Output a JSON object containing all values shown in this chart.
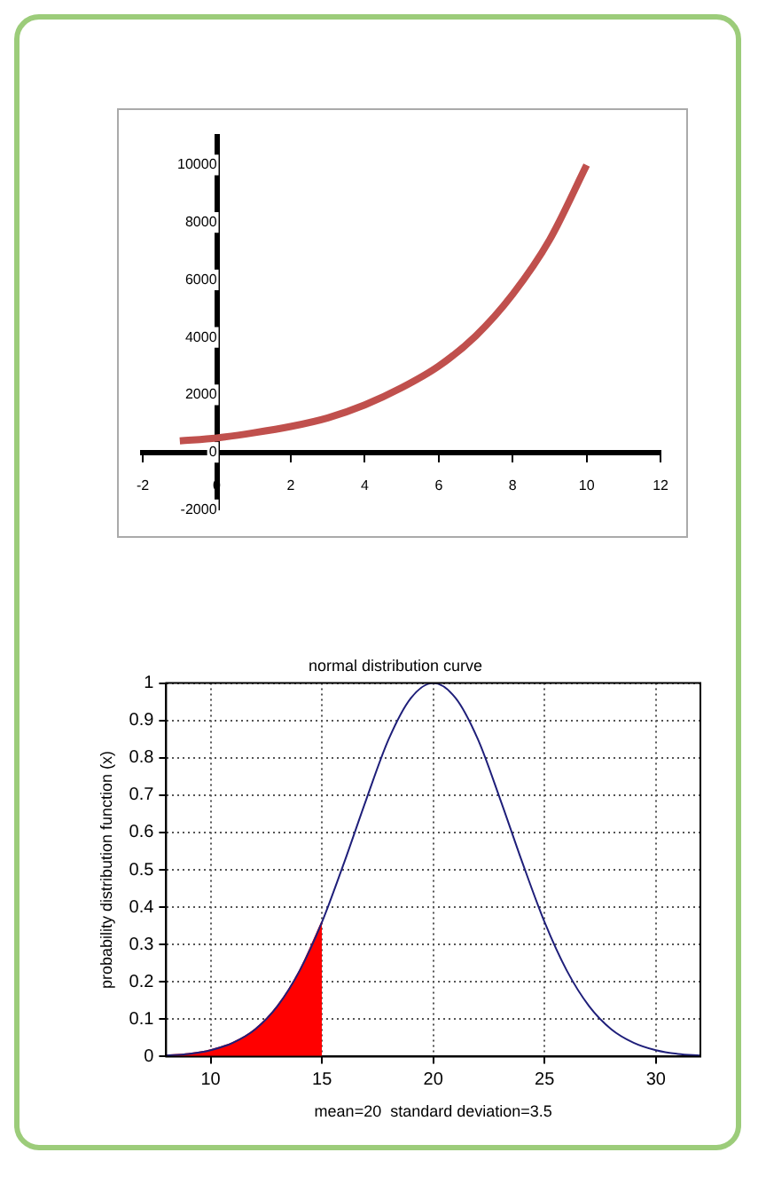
{
  "chart_data": [
    {
      "type": "line",
      "x": [
        -1,
        0,
        1,
        2,
        3,
        4,
        5,
        6,
        7,
        8,
        9,
        10
      ],
      "grid": false,
      "marker": "none",
      "series": [
        {
          "color": "#c0504d",
          "values": [
            400,
            500,
            680,
            900,
            1200,
            1650,
            2250,
            3000,
            4050,
            5500,
            7400,
            10000
          ]
        }
      ],
      "xlim": [
        -2,
        12
      ],
      "xticks": [
        -2,
        0,
        2,
        4,
        6,
        8,
        10,
        12
      ],
      "ylim": [
        -2000,
        11000
      ],
      "yticks": [
        -2000,
        0,
        2000,
        4000,
        6000,
        8000,
        10000
      ]
    },
    {
      "type": "line",
      "title": "normal distribution curve",
      "xlabel": "mean=20  standard deviation=3.5",
      "ylabel": "probability distribution function (x)",
      "grid": true,
      "marker": "none",
      "series": [
        {
          "type": "area",
          "color": "#ff0000",
          "x": [
            8,
            9,
            10,
            11,
            12,
            13,
            14,
            15
          ],
          "values": [
            0.003,
            0.007,
            0.017,
            0.037,
            0.073,
            0.135,
            0.23,
            0.36
          ]
        },
        {
          "color": "#1f1f7a",
          "x": [
            8,
            9,
            10,
            11,
            12,
            13,
            14,
            15,
            16,
            17,
            18,
            19,
            20,
            21,
            22,
            23,
            24,
            25,
            26,
            27,
            28,
            29,
            30,
            31,
            32
          ],
          "values": [
            0.003,
            0.007,
            0.017,
            0.037,
            0.073,
            0.135,
            0.23,
            0.36,
            0.52,
            0.69,
            0.85,
            0.96,
            1,
            0.96,
            0.85,
            0.69,
            0.52,
            0.36,
            0.23,
            0.135,
            0.073,
            0.037,
            0.017,
            0.007,
            0.003
          ]
        }
      ],
      "xlim": [
        8,
        32
      ],
      "xticks": [
        10,
        15,
        20,
        25,
        30
      ],
      "ylim": [
        0,
        1
      ],
      "yticks": [
        0,
        0.1,
        0.2,
        0.3,
        0.4,
        0.5,
        0.6,
        0.7,
        0.8,
        0.9,
        1
      ]
    }
  ]
}
